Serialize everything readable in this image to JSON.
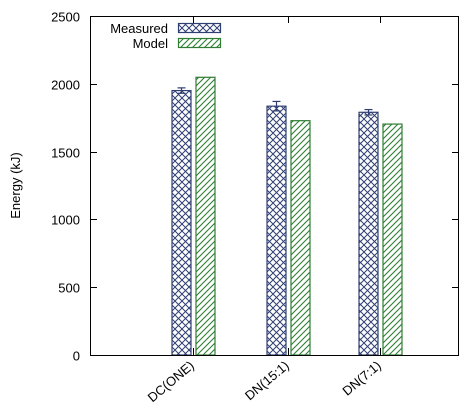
{
  "chart_data": {
    "type": "bar",
    "title": "",
    "xlabel": "",
    "ylabel": "Energy (kJ)",
    "ylim": [
      0,
      2500
    ],
    "yticks": [
      0,
      500,
      1000,
      1500,
      2000,
      2500
    ],
    "categories": [
      "DC(ONE)",
      "DN(15:1)",
      "DN(7:1)"
    ],
    "series": [
      {
        "name": "Measured",
        "values": [
          1950,
          1835,
          1790
        ],
        "errors": [
          20,
          35,
          20
        ],
        "color": "#2f3f73",
        "pattern": "crosshatch"
      },
      {
        "name": "Model",
        "values": [
          2048,
          1728,
          1703
        ],
        "color": "#2e7d32",
        "pattern": "diagonal"
      }
    ],
    "grid": false,
    "legend_position": "top-left"
  }
}
